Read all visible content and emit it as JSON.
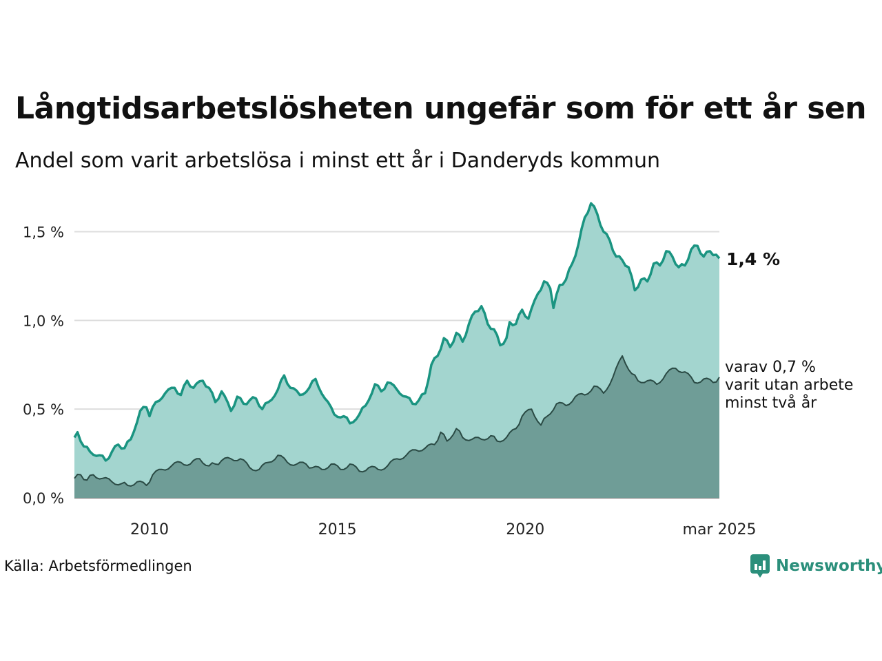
{
  "title": "Långtidsarbetslösheten ungefär som för ett år sen",
  "subtitle": "Andel som varit arbetslösa i minst ett år i Danderyds kommun",
  "source": "Källa: Arbetsförmedlingen",
  "brand": "Newsworthy",
  "colors": {
    "main_line": "#1a9481",
    "main_fill": "#a3d5cf",
    "sub_line": "#2a4a44",
    "sub_fill": "#6f9d97",
    "grid": "#dddddd",
    "brand": "#2b8f7b"
  },
  "chart_data": {
    "type": "area",
    "x_start": "2008-01",
    "x_end": "2025-03",
    "frequency": "monthly",
    "ylim": [
      0,
      1.7
    ],
    "yticks": [
      0.0,
      0.5,
      1.0,
      1.5
    ],
    "ytick_labels": [
      "0,0 %",
      "0,5 %",
      "1,0 %",
      "1,5 %"
    ],
    "xticks": [
      "2010-01",
      "2015-01",
      "2020-01",
      "2025-03"
    ],
    "xtick_labels": [
      "2010",
      "2015",
      "2020",
      "mar 2025"
    ],
    "grid": "horizontal",
    "series": [
      {
        "key": "main",
        "label": "1,4 %",
        "keypoints": [
          [
            "2008-01",
            0.34
          ],
          [
            "2008-02",
            0.37
          ],
          [
            "2008-04",
            0.29
          ],
          [
            "2008-06",
            0.26
          ],
          [
            "2008-09",
            0.24
          ],
          [
            "2008-11",
            0.21
          ],
          [
            "2009-01",
            0.26
          ],
          [
            "2009-03",
            0.3
          ],
          [
            "2009-05",
            0.28
          ],
          [
            "2009-07",
            0.33
          ],
          [
            "2009-10",
            0.49
          ],
          [
            "2009-12",
            0.51
          ],
          [
            "2010-01",
            0.46
          ],
          [
            "2010-03",
            0.54
          ],
          [
            "2010-06",
            0.59
          ],
          [
            "2010-09",
            0.62
          ],
          [
            "2010-11",
            0.58
          ],
          [
            "2011-01",
            0.66
          ],
          [
            "2011-03",
            0.62
          ],
          [
            "2011-06",
            0.66
          ],
          [
            "2011-08",
            0.62
          ],
          [
            "2011-10",
            0.54
          ],
          [
            "2011-12",
            0.6
          ],
          [
            "2012-03",
            0.49
          ],
          [
            "2012-05",
            0.57
          ],
          [
            "2012-07",
            0.53
          ],
          [
            "2012-09",
            0.55
          ],
          [
            "2012-11",
            0.56
          ],
          [
            "2013-01",
            0.5
          ],
          [
            "2013-03",
            0.54
          ],
          [
            "2013-06",
            0.61
          ],
          [
            "2013-08",
            0.69
          ],
          [
            "2013-10",
            0.62
          ],
          [
            "2014-01",
            0.58
          ],
          [
            "2014-04",
            0.62
          ],
          [
            "2014-06",
            0.67
          ],
          [
            "2014-09",
            0.56
          ],
          [
            "2014-12",
            0.47
          ],
          [
            "2015-03",
            0.46
          ],
          [
            "2015-05",
            0.42
          ],
          [
            "2015-08",
            0.47
          ],
          [
            "2015-10",
            0.52
          ],
          [
            "2016-01",
            0.64
          ],
          [
            "2016-03",
            0.6
          ],
          [
            "2016-05",
            0.65
          ],
          [
            "2016-08",
            0.61
          ],
          [
            "2016-11",
            0.57
          ],
          [
            "2017-01",
            0.53
          ],
          [
            "2017-03",
            0.55
          ],
          [
            "2017-05",
            0.59
          ],
          [
            "2017-07",
            0.75
          ],
          [
            "2017-09",
            0.8
          ],
          [
            "2017-11",
            0.9
          ],
          [
            "2018-01",
            0.85
          ],
          [
            "2018-03",
            0.93
          ],
          [
            "2018-05",
            0.88
          ],
          [
            "2018-07",
            0.98
          ],
          [
            "2018-09",
            1.05
          ],
          [
            "2018-11",
            1.08
          ],
          [
            "2019-01",
            0.98
          ],
          [
            "2019-03",
            0.95
          ],
          [
            "2019-05",
            0.86
          ],
          [
            "2019-07",
            0.9
          ],
          [
            "2019-08",
            0.99
          ],
          [
            "2019-10",
            0.98
          ],
          [
            "2019-12",
            1.06
          ],
          [
            "2020-02",
            1.01
          ],
          [
            "2020-05",
            1.15
          ],
          [
            "2020-07",
            1.22
          ],
          [
            "2020-09",
            1.18
          ],
          [
            "2020-10",
            1.07
          ],
          [
            "2020-12",
            1.2
          ],
          [
            "2021-02",
            1.23
          ],
          [
            "2021-04",
            1.32
          ],
          [
            "2021-06",
            1.43
          ],
          [
            "2021-08",
            1.58
          ],
          [
            "2021-10",
            1.66
          ],
          [
            "2021-12",
            1.6
          ],
          [
            "2022-02",
            1.5
          ],
          [
            "2022-04",
            1.45
          ],
          [
            "2022-06",
            1.36
          ],
          [
            "2022-08",
            1.34
          ],
          [
            "2022-10",
            1.3
          ],
          [
            "2022-12",
            1.17
          ],
          [
            "2023-02",
            1.23
          ],
          [
            "2023-04",
            1.22
          ],
          [
            "2023-06",
            1.32
          ],
          [
            "2023-08",
            1.31
          ],
          [
            "2023-10",
            1.39
          ],
          [
            "2023-12",
            1.36
          ],
          [
            "2024-02",
            1.3
          ],
          [
            "2024-04",
            1.31
          ],
          [
            "2024-06",
            1.4
          ],
          [
            "2024-08",
            1.42
          ],
          [
            "2024-10",
            1.36
          ],
          [
            "2024-12",
            1.39
          ],
          [
            "2025-02",
            1.37
          ],
          [
            "2025-03",
            1.35
          ]
        ]
      },
      {
        "key": "sub",
        "label": [
          "varav 0,7 %",
          "varit utan arbete",
          "minst två år"
        ],
        "keypoints": [
          [
            "2008-01",
            0.11
          ],
          [
            "2008-03",
            0.13
          ],
          [
            "2008-05",
            0.1
          ],
          [
            "2008-07",
            0.13
          ],
          [
            "2008-10",
            0.11
          ],
          [
            "2009-01",
            0.09
          ],
          [
            "2009-04",
            0.08
          ],
          [
            "2009-06",
            0.07
          ],
          [
            "2009-09",
            0.09
          ],
          [
            "2009-12",
            0.07
          ],
          [
            "2010-02",
            0.13
          ],
          [
            "2010-05",
            0.16
          ],
          [
            "2010-08",
            0.18
          ],
          [
            "2010-11",
            0.2
          ],
          [
            "2011-02",
            0.19
          ],
          [
            "2011-05",
            0.22
          ],
          [
            "2011-08",
            0.18
          ],
          [
            "2011-10",
            0.19
          ],
          [
            "2011-12",
            0.21
          ],
          [
            "2012-03",
            0.22
          ],
          [
            "2012-06",
            0.22
          ],
          [
            "2012-09",
            0.17
          ],
          [
            "2012-12",
            0.16
          ],
          [
            "2013-03",
            0.2
          ],
          [
            "2013-06",
            0.24
          ],
          [
            "2013-09",
            0.2
          ],
          [
            "2013-12",
            0.19
          ],
          [
            "2014-03",
            0.19
          ],
          [
            "2014-05",
            0.17
          ],
          [
            "2014-08",
            0.16
          ],
          [
            "2014-11",
            0.19
          ],
          [
            "2015-02",
            0.16
          ],
          [
            "2015-05",
            0.19
          ],
          [
            "2015-08",
            0.15
          ],
          [
            "2015-11",
            0.17
          ],
          [
            "2016-02",
            0.16
          ],
          [
            "2016-05",
            0.18
          ],
          [
            "2016-08",
            0.22
          ],
          [
            "2016-11",
            0.24
          ],
          [
            "2017-02",
            0.27
          ],
          [
            "2017-05",
            0.28
          ],
          [
            "2017-08",
            0.3
          ],
          [
            "2017-10",
            0.37
          ],
          [
            "2017-12",
            0.32
          ],
          [
            "2018-03",
            0.39
          ],
          [
            "2018-05",
            0.34
          ],
          [
            "2018-08",
            0.33
          ],
          [
            "2018-11",
            0.33
          ],
          [
            "2019-02",
            0.35
          ],
          [
            "2019-04",
            0.32
          ],
          [
            "2019-07",
            0.34
          ],
          [
            "2019-10",
            0.39
          ],
          [
            "2019-12",
            0.46
          ],
          [
            "2020-03",
            0.5
          ],
          [
            "2020-06",
            0.41
          ],
          [
            "2020-08",
            0.46
          ],
          [
            "2020-11",
            0.53
          ],
          [
            "2021-02",
            0.52
          ],
          [
            "2021-05",
            0.57
          ],
          [
            "2021-08",
            0.58
          ],
          [
            "2021-11",
            0.63
          ],
          [
            "2022-02",
            0.59
          ],
          [
            "2022-05",
            0.68
          ],
          [
            "2022-08",
            0.8
          ],
          [
            "2022-11",
            0.7
          ],
          [
            "2023-01",
            0.66
          ],
          [
            "2023-04",
            0.66
          ],
          [
            "2023-07",
            0.64
          ],
          [
            "2023-10",
            0.7
          ],
          [
            "2024-01",
            0.73
          ],
          [
            "2024-04",
            0.71
          ],
          [
            "2024-07",
            0.65
          ],
          [
            "2024-10",
            0.67
          ],
          [
            "2025-01",
            0.65
          ],
          [
            "2025-03",
            0.68
          ]
        ]
      }
    ]
  }
}
